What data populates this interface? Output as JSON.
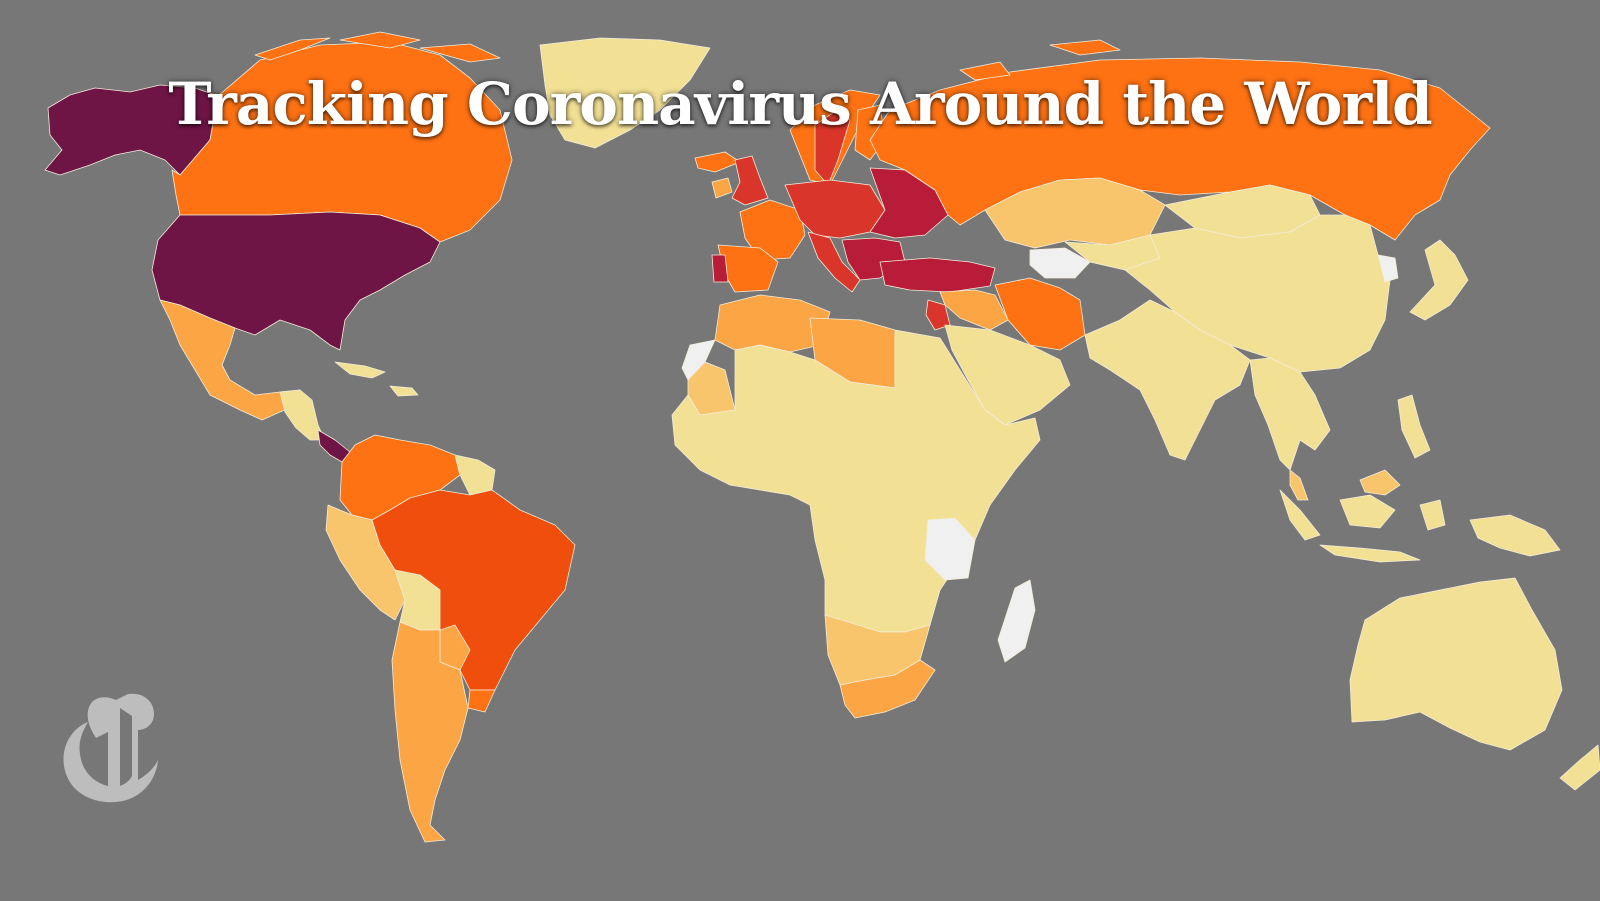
{
  "page": {
    "title": "Tracking Coronavirus Around the World"
  },
  "logo": {
    "name": "nyt-t-logo",
    "glyph": "𝕿"
  },
  "legend_colors": {
    "no_data": "#f0f0f0",
    "level_1": "#f2e094",
    "level_2": "#f8c46c",
    "level_3": "#fba544",
    "level_4": "#fe7213",
    "level_5": "#f04e0c",
    "level_6": "#d9352b",
    "level_7": "#b81c38",
    "level_8": "#6f1545"
  },
  "background": "#777777",
  "regions": [
    {
      "name": "alaska",
      "level": "level_8"
    },
    {
      "name": "united-states",
      "level": "level_8"
    },
    {
      "name": "canada",
      "level": "level_4"
    },
    {
      "name": "greenland",
      "level": "level_1"
    },
    {
      "name": "mexico",
      "level": "level_3"
    },
    {
      "name": "central-america",
      "level": "level_1"
    },
    {
      "name": "panama-costa-rica",
      "level": "level_8"
    },
    {
      "name": "caribbean",
      "level": "level_1"
    },
    {
      "name": "colombia-venezuela",
      "level": "level_4"
    },
    {
      "name": "guyanas",
      "level": "level_1"
    },
    {
      "name": "brazil",
      "level": "level_5"
    },
    {
      "name": "peru-ecuador",
      "level": "level_2"
    },
    {
      "name": "bolivia",
      "level": "level_1"
    },
    {
      "name": "paraguay",
      "level": "level_3"
    },
    {
      "name": "argentina-chile",
      "level": "level_3"
    },
    {
      "name": "uruguay",
      "level": "level_4"
    },
    {
      "name": "iceland",
      "level": "level_4"
    },
    {
      "name": "norway-sweden",
      "level": "level_4"
    },
    {
      "name": "finland",
      "level": "level_4"
    },
    {
      "name": "uk",
      "level": "level_6"
    },
    {
      "name": "ireland",
      "level": "level_3"
    },
    {
      "name": "france",
      "level": "level_4"
    },
    {
      "name": "spain",
      "level": "level_4"
    },
    {
      "name": "portugal",
      "level": "level_7"
    },
    {
      "name": "central-europe",
      "level": "level_6"
    },
    {
      "name": "eastern-europe",
      "level": "level_7"
    },
    {
      "name": "italy",
      "level": "level_6"
    },
    {
      "name": "balkans",
      "level": "level_7"
    },
    {
      "name": "turkey",
      "level": "level_7"
    },
    {
      "name": "russia",
      "level": "level_4"
    },
    {
      "name": "kazakhstan",
      "level": "level_2"
    },
    {
      "name": "central-asia",
      "level": "level_1"
    },
    {
      "name": "turkmenistan",
      "level": "no_data"
    },
    {
      "name": "iran",
      "level": "level_4"
    },
    {
      "name": "middle-east",
      "level": "level_1"
    },
    {
      "name": "iraq-syria",
      "level": "level_3"
    },
    {
      "name": "jordan",
      "level": "level_6"
    },
    {
      "name": "north-africa",
      "level": "level_3"
    },
    {
      "name": "libya",
      "level": "level_3"
    },
    {
      "name": "western-sahara",
      "level": "no_data"
    },
    {
      "name": "mauritania",
      "level": "level_2"
    },
    {
      "name": "africa",
      "level": "level_1"
    },
    {
      "name": "tanzania",
      "level": "no_data"
    },
    {
      "name": "southern-africa",
      "level": "level_2"
    },
    {
      "name": "south-africa",
      "level": "level_3"
    },
    {
      "name": "madagascar",
      "level": "no_data"
    },
    {
      "name": "china",
      "level": "level_1"
    },
    {
      "name": "mongolia",
      "level": "level_1"
    },
    {
      "name": "north-korea",
      "level": "no_data"
    },
    {
      "name": "japan",
      "level": "level_1"
    },
    {
      "name": "india",
      "level": "level_1"
    },
    {
      "name": "southeast-asia",
      "level": "level_1"
    },
    {
      "name": "malaysia",
      "level": "level_2"
    },
    {
      "name": "indonesia",
      "level": "level_1"
    },
    {
      "name": "philippines",
      "level": "level_1"
    },
    {
      "name": "papua-new-guinea",
      "level": "level_1"
    },
    {
      "name": "australia",
      "level": "level_1"
    },
    {
      "name": "new-zealand",
      "level": "level_1"
    }
  ]
}
